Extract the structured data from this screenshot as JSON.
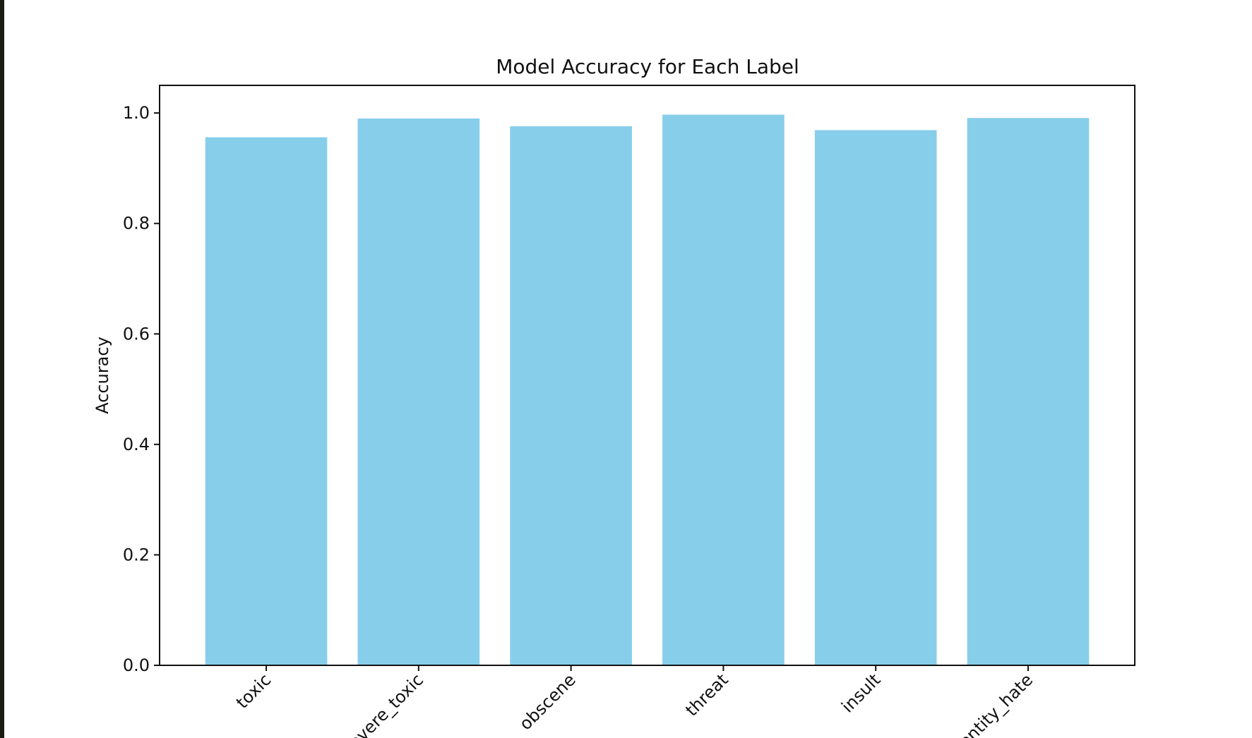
{
  "chart_data": {
    "type": "bar",
    "title": "Model Accuracy for Each Label",
    "xlabel": "",
    "ylabel": "Accuracy",
    "categories": [
      "toxic",
      "severe_toxic",
      "obscene",
      "threat",
      "insult",
      "identity_hate"
    ],
    "values": [
      0.956,
      0.99,
      0.976,
      0.997,
      0.969,
      0.991
    ],
    "ylim": [
      0,
      1.05
    ],
    "yticks": [
      "0.0",
      "0.2",
      "0.4",
      "0.6",
      "0.8",
      "1.0"
    ],
    "bar_color": "#87ceeb",
    "grid": false,
    "legend": "none"
  }
}
